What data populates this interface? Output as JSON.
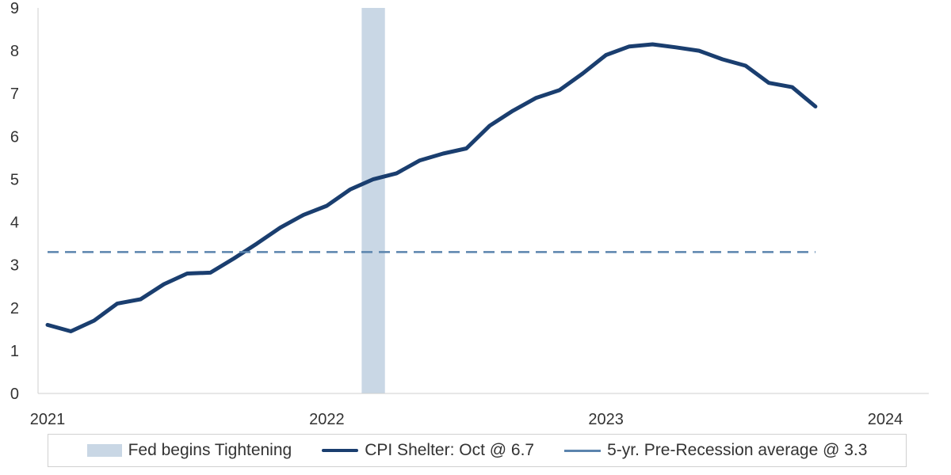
{
  "chart_data": {
    "type": "line",
    "title": "",
    "xlabel": "",
    "ylabel": "",
    "ylim": [
      0,
      9
    ],
    "yticks": [
      "0",
      "1",
      "2",
      "3",
      "4",
      "5",
      "6",
      "7",
      "8",
      "9"
    ],
    "xlim": [
      "2021-01",
      "2024-01"
    ],
    "xticks": [
      "2021",
      "2022",
      "2023",
      "2024"
    ],
    "grid": false,
    "legend_position": "bottom",
    "series": [
      {
        "name": "CPI Shelter: Oct @ 6.7",
        "color": "#1a3e6f",
        "x": [
          "2021-01",
          "2021-02",
          "2021-03",
          "2021-04",
          "2021-05",
          "2021-06",
          "2021-07",
          "2021-08",
          "2021-09",
          "2021-10",
          "2021-11",
          "2021-12",
          "2022-01",
          "2022-02",
          "2022-03",
          "2022-04",
          "2022-05",
          "2022-06",
          "2022-07",
          "2022-08",
          "2022-09",
          "2022-10",
          "2022-11",
          "2022-12",
          "2023-01",
          "2023-02",
          "2023-03",
          "2023-04",
          "2023-05",
          "2023-06",
          "2023-07",
          "2023-08",
          "2023-09",
          "2023-10"
        ],
        "values": [
          1.6,
          1.45,
          1.7,
          2.1,
          2.2,
          2.55,
          2.8,
          2.82,
          3.15,
          3.5,
          3.87,
          4.17,
          4.38,
          4.76,
          5.0,
          5.14,
          5.44,
          5.6,
          5.72,
          6.25,
          6.6,
          6.9,
          7.08,
          7.47,
          7.9,
          8.1,
          8.15,
          8.08,
          8.0,
          7.8,
          7.65,
          7.25,
          7.15,
          6.7
        ]
      },
      {
        "name": "5-yr. Pre-Recession average @ 3.3",
        "color": "#5b84ad",
        "style": "dashed",
        "x": [
          "2021-01",
          "2023-10"
        ],
        "values": [
          3.3,
          3.3
        ]
      }
    ],
    "bands": [
      {
        "name": "Fed begins Tightening",
        "color": "#c9d7e5",
        "x": [
          "2022-03"
        ]
      }
    ]
  }
}
